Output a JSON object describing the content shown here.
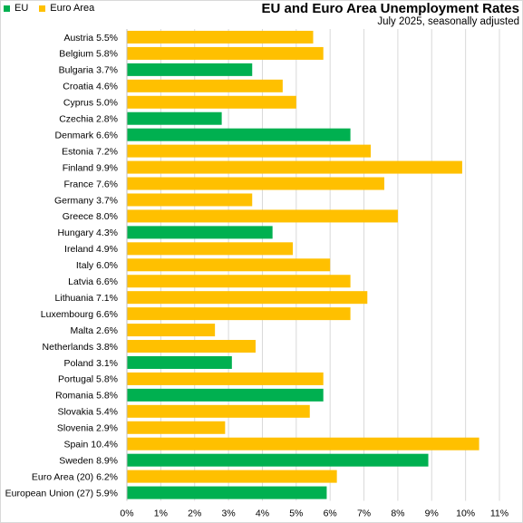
{
  "chart_data": {
    "type": "bar",
    "orientation": "horizontal",
    "title": "EU and Euro Area Unemployment Rates",
    "subtitle": "July 2025, seasonally adjusted",
    "legend": {
      "position": "top-left",
      "entries": [
        {
          "name": "EU",
          "color": "#00b050"
        },
        {
          "name": "Euro Area",
          "color": "#ffc000"
        }
      ]
    },
    "xlim": [
      0,
      11
    ],
    "x_ticks": [
      "0%",
      "1%",
      "2%",
      "3%",
      "4%",
      "5%",
      "6%",
      "7%",
      "8%",
      "9%",
      "10%",
      "11%"
    ],
    "grid": true,
    "categories": [
      {
        "label": "Austria 5.5%",
        "value": 5.5,
        "group": "Euro Area"
      },
      {
        "label": "Belgium 5.8%",
        "value": 5.8,
        "group": "Euro Area"
      },
      {
        "label": "Bulgaria 3.7%",
        "value": 3.7,
        "group": "EU"
      },
      {
        "label": "Croatia 4.6%",
        "value": 4.6,
        "group": "Euro Area"
      },
      {
        "label": "Cyprus 5.0%",
        "value": 5.0,
        "group": "Euro Area"
      },
      {
        "label": "Czechia 2.8%",
        "value": 2.8,
        "group": "EU"
      },
      {
        "label": "Denmark 6.6%",
        "value": 6.6,
        "group": "EU"
      },
      {
        "label": "Estonia 7.2%",
        "value": 7.2,
        "group": "Euro Area"
      },
      {
        "label": "Finland 9.9%",
        "value": 9.9,
        "group": "Euro Area"
      },
      {
        "label": "France 7.6%",
        "value": 7.6,
        "group": "Euro Area"
      },
      {
        "label": "Germany 3.7%",
        "value": 3.7,
        "group": "Euro Area"
      },
      {
        "label": "Greece 8.0%",
        "value": 8.0,
        "group": "Euro Area"
      },
      {
        "label": "Hungary 4.3%",
        "value": 4.3,
        "group": "EU"
      },
      {
        "label": "Ireland 4.9%",
        "value": 4.9,
        "group": "Euro Area"
      },
      {
        "label": "Italy 6.0%",
        "value": 6.0,
        "group": "Euro Area"
      },
      {
        "label": "Latvia 6.6%",
        "value": 6.6,
        "group": "Euro Area"
      },
      {
        "label": "Lithuania 7.1%",
        "value": 7.1,
        "group": "Euro Area"
      },
      {
        "label": "Luxembourg 6.6%",
        "value": 6.6,
        "group": "Euro Area"
      },
      {
        "label": "Malta 2.6%",
        "value": 2.6,
        "group": "Euro Area"
      },
      {
        "label": "Netherlands 3.8%",
        "value": 3.8,
        "group": "Euro Area"
      },
      {
        "label": "Poland 3.1%",
        "value": 3.1,
        "group": "EU"
      },
      {
        "label": "Portugal 5.8%",
        "value": 5.8,
        "group": "Euro Area"
      },
      {
        "label": "Romania 5.8%",
        "value": 5.8,
        "group": "EU"
      },
      {
        "label": "Slovakia 5.4%",
        "value": 5.4,
        "group": "Euro Area"
      },
      {
        "label": "Slovenia 2.9%",
        "value": 2.9,
        "group": "Euro Area"
      },
      {
        "label": "Spain 10.4%",
        "value": 10.4,
        "group": "Euro Area"
      },
      {
        "label": "Sweden 8.9%",
        "value": 8.9,
        "group": "EU"
      },
      {
        "label": "Euro Area (20) 6.2%",
        "value": 6.2,
        "group": "Euro Area"
      },
      {
        "label": "European Union (27) 5.9%",
        "value": 5.9,
        "group": "EU"
      }
    ]
  }
}
